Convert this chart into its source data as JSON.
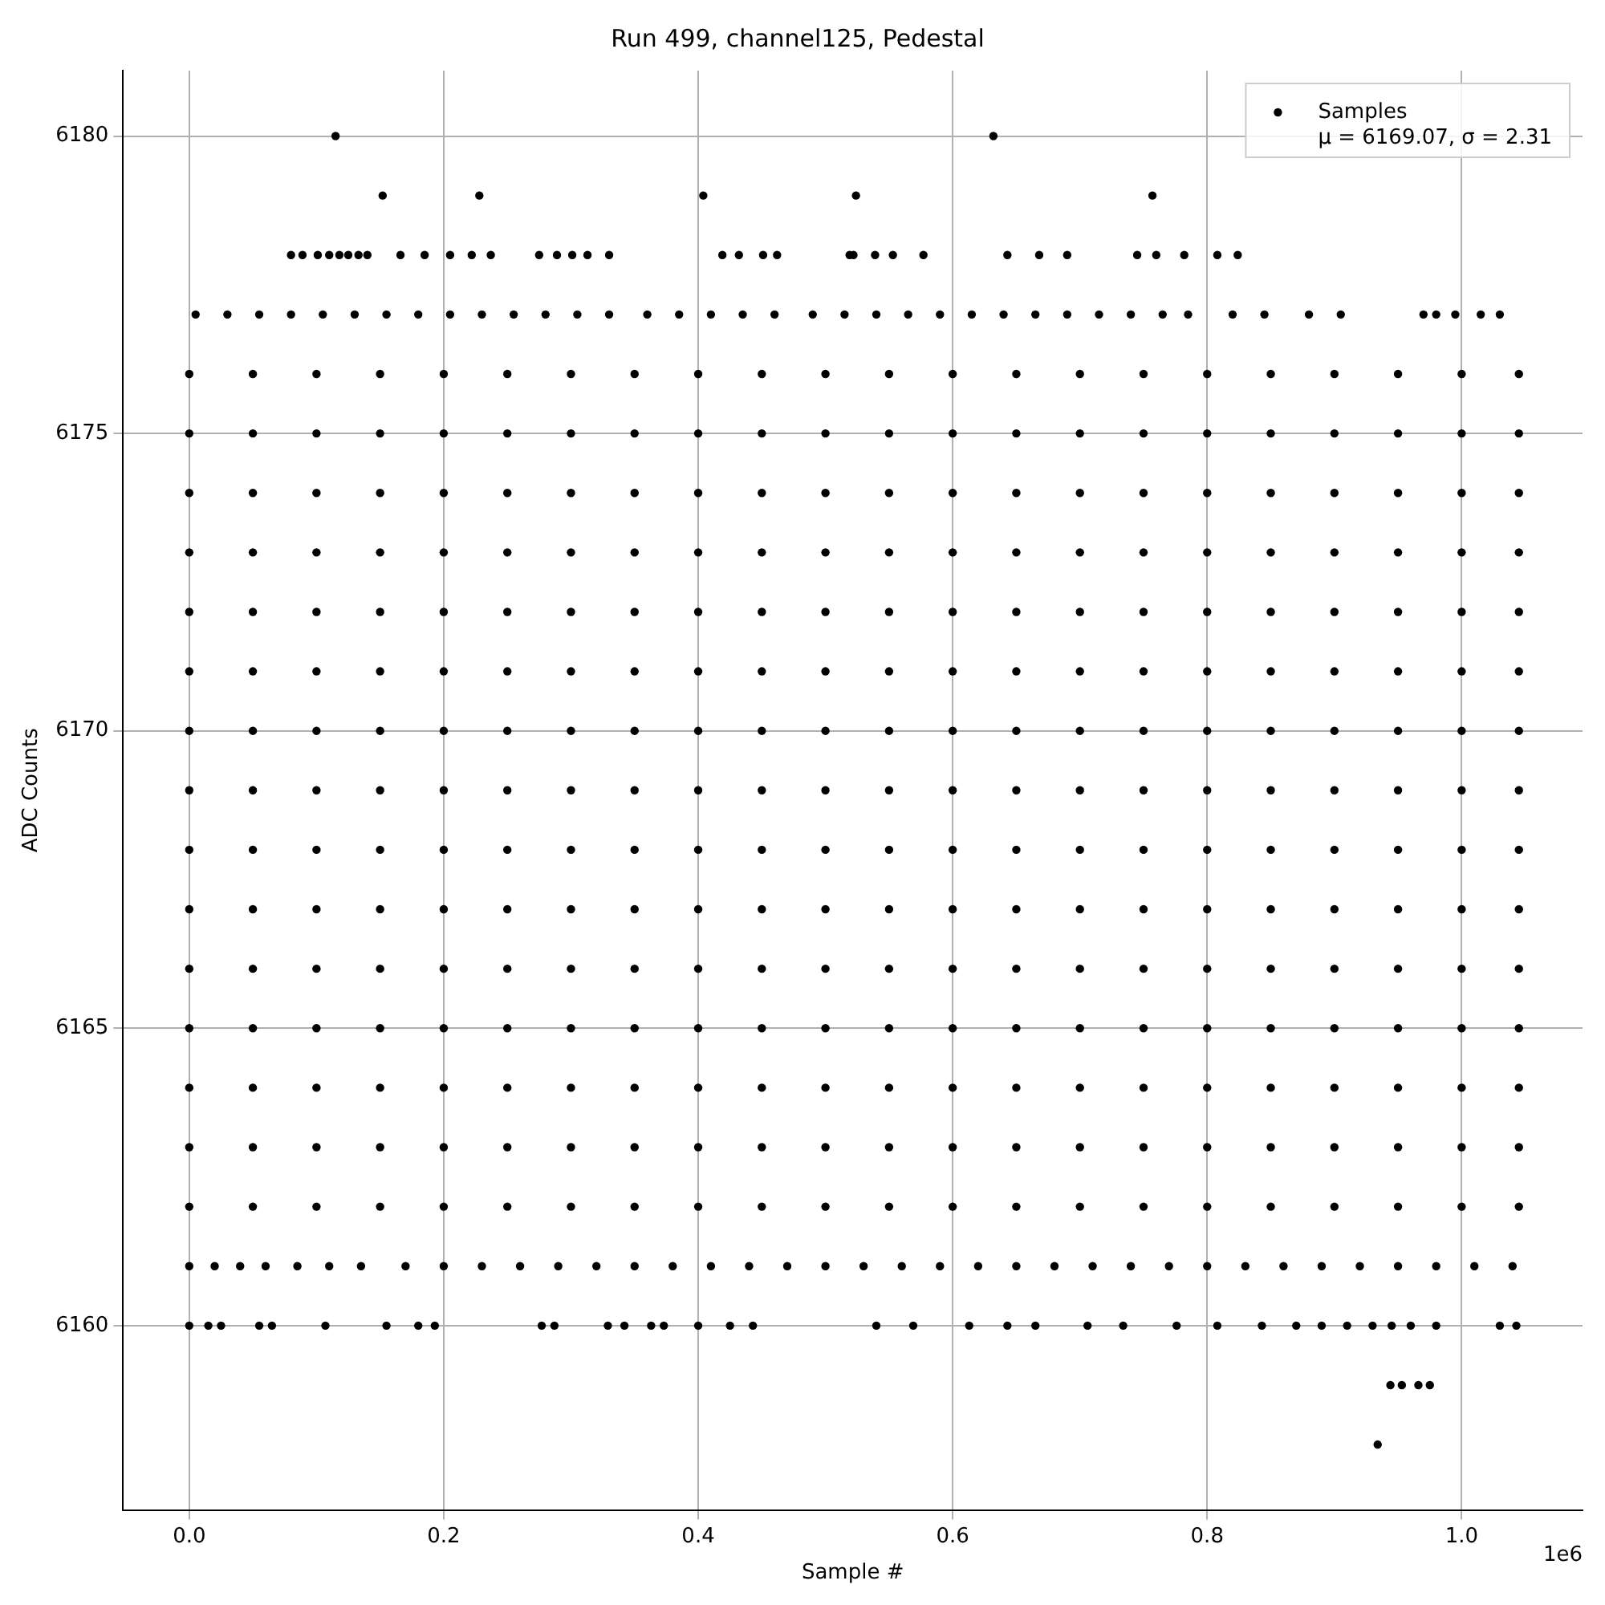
{
  "chart_data": {
    "type": "scatter",
    "title": "Run 499, channel125, Pedestal",
    "xlabel": "Sample #",
    "ylabel": "ADC Counts",
    "xlim": [
      -0.052,
      1.095
    ],
    "xticks": [
      {
        "value": 0,
        "label": "0.0"
      },
      0.2,
      0.4,
      0.6,
      0.8,
      {
        "value": 1,
        "label": "1.0"
      }
    ],
    "ylim": [
      6156.9,
      6181.1
    ],
    "yticks": [
      6160,
      6165,
      6170,
      6175,
      6180
    ],
    "grid": true,
    "legend": "top right",
    "marker": "circle",
    "annotations": [
      "1e6"
    ],
    "series": [
      {
        "name": "Samples\nμ = 6169.07, σ = 2.31",
        "color": "#000000",
        "x": [
          0.115,
          0.632,
          0.152,
          0.228,
          0.404,
          0.524,
          0.757,
          0.08,
          0.089,
          0.101,
          0.11,
          0.118,
          0.125,
          0.133,
          0.14,
          0.166,
          0.185,
          0.205,
          0.222,
          0.237,
          0.275,
          0.289,
          0.301,
          0.313,
          0.33,
          0.419,
          0.432,
          0.451,
          0.462,
          0.519,
          0.522,
          0.539,
          0.553,
          0.577,
          0.643,
          0.668,
          0.69,
          0.745,
          0.76,
          0.782,
          0.808,
          0.824,
          0.005,
          0.03,
          0.055,
          0.08,
          0.105,
          0.13,
          0.155,
          0.18,
          0.205,
          0.23,
          0.255,
          0.28,
          0.305,
          0.33,
          0.36,
          0.385,
          0.41,
          0.435,
          0.46,
          0.49,
          0.515,
          0.54,
          0.565,
          0.59,
          0.615,
          0.64,
          0.665,
          0.69,
          0.715,
          0.74,
          0.765,
          0.785,
          0.82,
          0.845,
          0.88,
          0.905,
          0.97,
          0.98,
          0.995,
          1.015,
          1.03,
          0,
          0.05,
          0.1,
          0.15,
          0.2,
          0.25,
          0.3,
          0.35,
          0.4,
          0.45,
          0.5,
          0.55,
          0.6,
          0.65,
          0.7,
          0.75,
          0.8,
          0.85,
          0.9,
          0.95,
          1,
          1.045,
          0,
          0.05,
          0.1,
          0.15,
          0.2,
          0.25,
          0.3,
          0.35,
          0.4,
          0.45,
          0.5,
          0.55,
          0.6,
          0.65,
          0.7,
          0.75,
          0.8,
          0.85,
          0.9,
          0.95,
          1,
          1.045,
          0,
          0.05,
          0.1,
          0.15,
          0.2,
          0.25,
          0.3,
          0.35,
          0.4,
          0.45,
          0.5,
          0.55,
          0.6,
          0.65,
          0.7,
          0.75,
          0.8,
          0.85,
          0.9,
          0.95,
          1,
          1.045,
          0,
          0.05,
          0.1,
          0.15,
          0.2,
          0.25,
          0.3,
          0.35,
          0.4,
          0.45,
          0.5,
          0.55,
          0.6,
          0.65,
          0.7,
          0.75,
          0.8,
          0.85,
          0.9,
          0.95,
          1,
          1.045,
          0,
          0.05,
          0.1,
          0.15,
          0.2,
          0.25,
          0.3,
          0.35,
          0.4,
          0.45,
          0.5,
          0.55,
          0.6,
          0.65,
          0.7,
          0.75,
          0.8,
          0.85,
          0.9,
          0.95,
          1,
          1.045,
          0,
          0.05,
          0.1,
          0.15,
          0.2,
          0.25,
          0.3,
          0.35,
          0.4,
          0.45,
          0.5,
          0.55,
          0.6,
          0.65,
          0.7,
          0.75,
          0.8,
          0.85,
          0.9,
          0.95,
          1,
          1.045,
          0,
          0.05,
          0.1,
          0.15,
          0.2,
          0.25,
          0.3,
          0.35,
          0.4,
          0.45,
          0.5,
          0.55,
          0.6,
          0.65,
          0.7,
          0.75,
          0.8,
          0.85,
          0.9,
          0.95,
          1,
          1.045,
          0,
          0.05,
          0.1,
          0.15,
          0.2,
          0.25,
          0.3,
          0.35,
          0.4,
          0.45,
          0.5,
          0.55,
          0.6,
          0.65,
          0.7,
          0.75,
          0.8,
          0.85,
          0.9,
          0.95,
          1,
          1.045,
          0,
          0.05,
          0.1,
          0.15,
          0.2,
          0.25,
          0.3,
          0.35,
          0.4,
          0.45,
          0.5,
          0.55,
          0.6,
          0.65,
          0.7,
          0.75,
          0.8,
          0.85,
          0.9,
          0.95,
          1,
          1.045,
          0,
          0.05,
          0.1,
          0.15,
          0.2,
          0.25,
          0.3,
          0.35,
          0.4,
          0.45,
          0.5,
          0.55,
          0.6,
          0.65,
          0.7,
          0.75,
          0.8,
          0.85,
          0.9,
          0.95,
          1,
          1.045,
          0,
          0.05,
          0.1,
          0.15,
          0.2,
          0.25,
          0.3,
          0.35,
          0.4,
          0.45,
          0.5,
          0.55,
          0.6,
          0.65,
          0.7,
          0.75,
          0.8,
          0.85,
          0.9,
          0.95,
          1,
          1.045,
          0,
          0.05,
          0.1,
          0.15,
          0.2,
          0.25,
          0.3,
          0.35,
          0.4,
          0.45,
          0.5,
          0.55,
          0.6,
          0.65,
          0.7,
          0.75,
          0.8,
          0.85,
          0.9,
          0.95,
          1,
          1.045,
          0,
          0.05,
          0.1,
          0.15,
          0.2,
          0.25,
          0.3,
          0.35,
          0.4,
          0.45,
          0.5,
          0.55,
          0.6,
          0.65,
          0.7,
          0.75,
          0.8,
          0.85,
          0.9,
          0.95,
          1,
          1.045,
          0,
          0.05,
          0.1,
          0.15,
          0.2,
          0.25,
          0.3,
          0.35,
          0.4,
          0.45,
          0.5,
          0.55,
          0.6,
          0.65,
          0.7,
          0.75,
          0.8,
          0.85,
          0.9,
          0.95,
          1,
          1.045,
          0,
          0.05,
          0.1,
          0.15,
          0.2,
          0.25,
          0.3,
          0.35,
          0.4,
          0.45,
          0.5,
          0.55,
          0.6,
          0.65,
          0.7,
          0.75,
          0.8,
          0.85,
          0.9,
          0.95,
          1,
          1.045,
          0,
          0.02,
          0.04,
          0.06,
          0.085,
          0.11,
          0.135,
          0.17,
          0.2,
          0.23,
          0.26,
          0.29,
          0.32,
          0.35,
          0.38,
          0.41,
          0.44,
          0.47,
          0.5,
          0.53,
          0.56,
          0.59,
          0.62,
          0.65,
          0.68,
          0.71,
          0.74,
          0.77,
          0.8,
          0.83,
          0.86,
          0.89,
          0.92,
          0.95,
          0.98,
          1.01,
          1.04,
          0,
          0.015,
          0.025,
          0.055,
          0.065,
          0.107,
          0.155,
          0.18,
          0.193,
          0.277,
          0.287,
          0.329,
          0.342,
          0.363,
          0.373,
          0.4,
          0.425,
          0.443,
          0.54,
          0.569,
          0.613,
          0.643,
          0.665,
          0.706,
          0.734,
          0.776,
          0.808,
          0.843,
          0.87,
          0.89,
          0.91,
          0.93,
          0.945,
          0.96,
          0.98,
          1.03,
          1.043,
          0.944,
          0.953,
          0.966,
          0.975,
          0.934
        ],
        "values": [
          6180,
          6180,
          6179,
          6179,
          6179,
          6179,
          6179,
          6178,
          6178,
          6178,
          6178,
          6178,
          6178,
          6178,
          6178,
          6178,
          6178,
          6178,
          6178,
          6178,
          6178,
          6178,
          6178,
          6178,
          6178,
          6178,
          6178,
          6178,
          6178,
          6178,
          6178,
          6178,
          6178,
          6178,
          6178,
          6178,
          6178,
          6178,
          6178,
          6178,
          6178,
          6178,
          6177,
          6177,
          6177,
          6177,
          6177,
          6177,
          6177,
          6177,
          6177,
          6177,
          6177,
          6177,
          6177,
          6177,
          6177,
          6177,
          6177,
          6177,
          6177,
          6177,
          6177,
          6177,
          6177,
          6177,
          6177,
          6177,
          6177,
          6177,
          6177,
          6177,
          6177,
          6177,
          6177,
          6177,
          6177,
          6177,
          6177,
          6177,
          6177,
          6177,
          6177,
          6176,
          6176,
          6176,
          6176,
          6176,
          6176,
          6176,
          6176,
          6176,
          6176,
          6176,
          6176,
          6176,
          6176,
          6176,
          6176,
          6176,
          6176,
          6176,
          6176,
          6176,
          6176,
          6175,
          6175,
          6175,
          6175,
          6175,
          6175,
          6175,
          6175,
          6175,
          6175,
          6175,
          6175,
          6175,
          6175,
          6175,
          6175,
          6175,
          6175,
          6175,
          6175,
          6175,
          6175,
          6174,
          6174,
          6174,
          6174,
          6174,
          6174,
          6174,
          6174,
          6174,
          6174,
          6174,
          6174,
          6174,
          6174,
          6174,
          6174,
          6174,
          6174,
          6174,
          6174,
          6174,
          6174,
          6173,
          6173,
          6173,
          6173,
          6173,
          6173,
          6173,
          6173,
          6173,
          6173,
          6173,
          6173,
          6173,
          6173,
          6173,
          6173,
          6173,
          6173,
          6173,
          6173,
          6173,
          6173,
          6172,
          6172,
          6172,
          6172,
          6172,
          6172,
          6172,
          6172,
          6172,
          6172,
          6172,
          6172,
          6172,
          6172,
          6172,
          6172,
          6172,
          6172,
          6172,
          6172,
          6172,
          6172,
          6171,
          6171,
          6171,
          6171,
          6171,
          6171,
          6171,
          6171,
          6171,
          6171,
          6171,
          6171,
          6171,
          6171,
          6171,
          6171,
          6171,
          6171,
          6171,
          6171,
          6171,
          6171,
          6170,
          6170,
          6170,
          6170,
          6170,
          6170,
          6170,
          6170,
          6170,
          6170,
          6170,
          6170,
          6170,
          6170,
          6170,
          6170,
          6170,
          6170,
          6170,
          6170,
          6170,
          6170,
          6169,
          6169,
          6169,
          6169,
          6169,
          6169,
          6169,
          6169,
          6169,
          6169,
          6169,
          6169,
          6169,
          6169,
          6169,
          6169,
          6169,
          6169,
          6169,
          6169,
          6169,
          6169,
          6168,
          6168,
          6168,
          6168,
          6168,
          6168,
          6168,
          6168,
          6168,
          6168,
          6168,
          6168,
          6168,
          6168,
          6168,
          6168,
          6168,
          6168,
          6168,
          6168,
          6168,
          6168,
          6167,
          6167,
          6167,
          6167,
          6167,
          6167,
          6167,
          6167,
          6167,
          6167,
          6167,
          6167,
          6167,
          6167,
          6167,
          6167,
          6167,
          6167,
          6167,
          6167,
          6167,
          6167,
          6166,
          6166,
          6166,
          6166,
          6166,
          6166,
          6166,
          6166,
          6166,
          6166,
          6166,
          6166,
          6166,
          6166,
          6166,
          6166,
          6166,
          6166,
          6166,
          6166,
          6166,
          6166,
          6165,
          6165,
          6165,
          6165,
          6165,
          6165,
          6165,
          6165,
          6165,
          6165,
          6165,
          6165,
          6165,
          6165,
          6165,
          6165,
          6165,
          6165,
          6165,
          6165,
          6165,
          6165,
          6164,
          6164,
          6164,
          6164,
          6164,
          6164,
          6164,
          6164,
          6164,
          6164,
          6164,
          6164,
          6164,
          6164,
          6164,
          6164,
          6164,
          6164,
          6164,
          6164,
          6164,
          6164,
          6163,
          6163,
          6163,
          6163,
          6163,
          6163,
          6163,
          6163,
          6163,
          6163,
          6163,
          6163,
          6163,
          6163,
          6163,
          6163,
          6163,
          6163,
          6163,
          6163,
          6163,
          6163,
          6162,
          6162,
          6162,
          6162,
          6162,
          6162,
          6162,
          6162,
          6162,
          6162,
          6162,
          6162,
          6162,
          6162,
          6162,
          6162,
          6162,
          6162,
          6162,
          6162,
          6162,
          6162,
          6161,
          6161,
          6161,
          6161,
          6161,
          6161,
          6161,
          6161,
          6161,
          6161,
          6161,
          6161,
          6161,
          6161,
          6161,
          6161,
          6161,
          6161,
          6161,
          6161,
          6161,
          6161,
          6161,
          6161,
          6161,
          6161,
          6161,
          6161,
          6161,
          6161,
          6161,
          6161,
          6161,
          6161,
          6161,
          6161,
          6161,
          6160,
          6160,
          6160,
          6160,
          6160,
          6160,
          6160,
          6160,
          6160,
          6160,
          6160,
          6160,
          6160,
          6160,
          6160,
          6160,
          6160,
          6160,
          6160,
          6160,
          6160,
          6160,
          6160,
          6160,
          6160,
          6160,
          6160,
          6160,
          6160,
          6160,
          6160,
          6160,
          6160,
          6160,
          6160,
          6160,
          6160,
          6159,
          6159,
          6159,
          6159,
          6158
        ]
      }
    ]
  }
}
